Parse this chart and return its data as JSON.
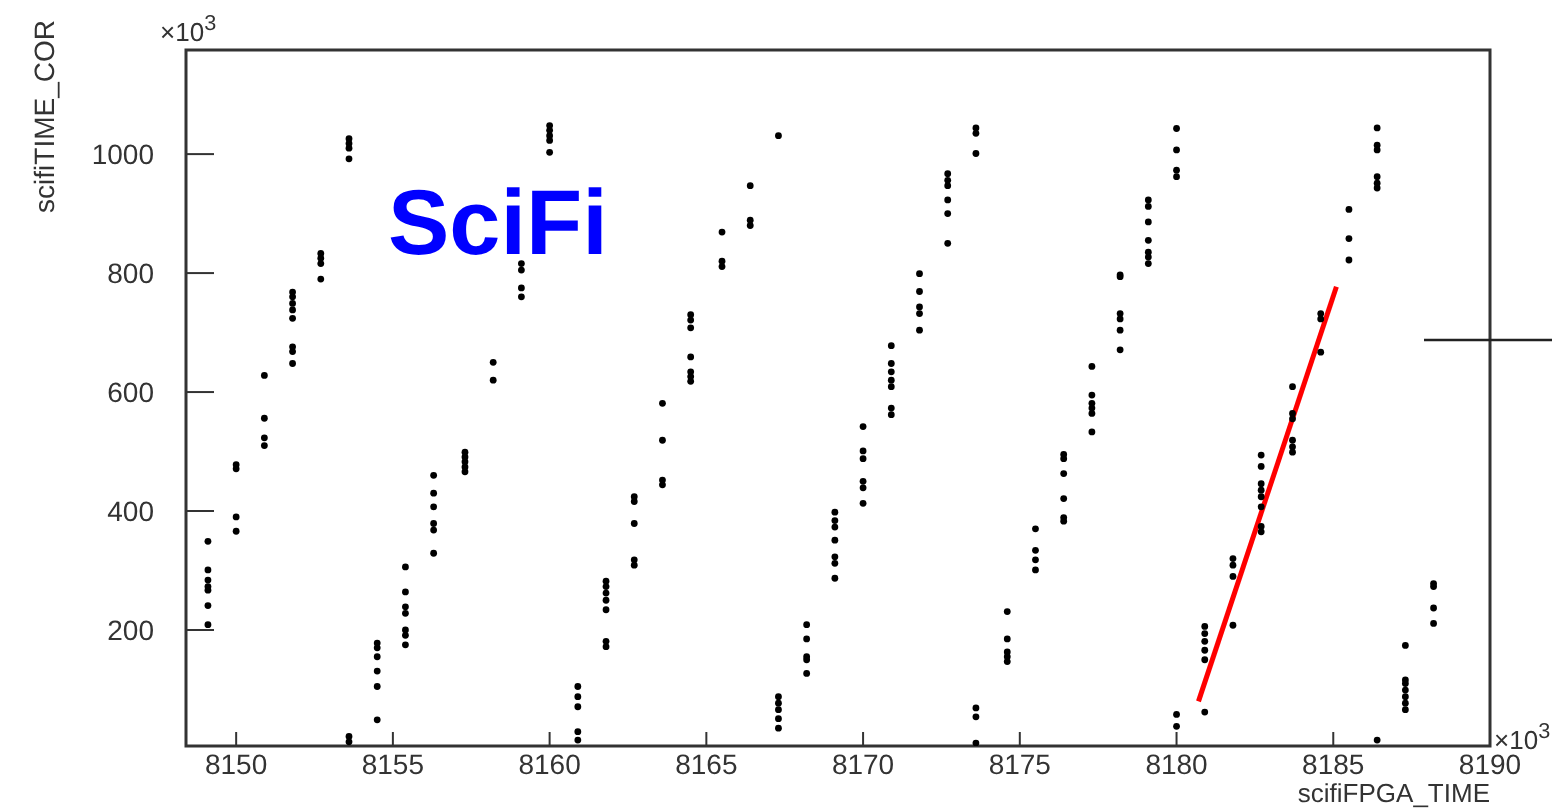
{
  "chart_data": {
    "type": "scatter",
    "title": "SciFi",
    "xlabel": "scifiFPGA_TIME",
    "ylabel": "scifiTIME_COR",
    "annotations": [
      "×10$^{3}$",
      "×10$^{3}$"
    ],
    "xlim": [
      8148.4,
      8190
    ],
    "xticks": [
      8150,
      8155,
      8160,
      8165,
      8170,
      8175,
      8180,
      8185,
      8190
    ],
    "ylim": [
      5,
      1175
    ],
    "yticks": [
      200,
      400,
      600,
      800,
      1000
    ],
    "marker": "circle",
    "series": [
      {
        "color": "#000000",
        "x": [
          8149.1,
          8149.1,
          8149.1,
          8149.1,
          8149.1,
          8149.1,
          8149.1,
          8150.0,
          8150.0,
          8150.0,
          8150.0,
          8150.9,
          8150.9,
          8150.9,
          8150.9,
          8151.8,
          8151.8,
          8151.8,
          8151.8,
          8151.8,
          8151.8,
          8151.8,
          8151.8,
          8152.7,
          8152.7,
          8152.7,
          8152.7,
          8153.6,
          8153.6,
          8153.6,
          8153.6,
          8153.6,
          8153.6,
          8154.5,
          8154.5,
          8154.5,
          8154.5,
          8154.5,
          8154.5,
          8155.4,
          8155.4,
          8155.4,
          8155.4,
          8155.4,
          8155.4,
          8155.4,
          8156.3,
          8156.3,
          8156.3,
          8156.3,
          8156.3,
          8156.3,
          8157.3,
          8157.3,
          8157.3,
          8157.3,
          8157.3,
          8158.2,
          8158.2,
          8159.1,
          8159.1,
          8159.1,
          8159.1,
          8160.0,
          8160.0,
          8160.0,
          8160.0,
          8160.0,
          8160.9,
          8160.9,
          8160.9,
          8160.9,
          8160.9,
          8161.8,
          8161.8,
          8161.8,
          8161.8,
          8161.8,
          8161.8,
          8161.8,
          8162.7,
          8162.7,
          8162.7,
          8162.7,
          8162.7,
          8163.6,
          8163.6,
          8163.6,
          8163.6,
          8164.5,
          8164.5,
          8164.5,
          8164.5,
          8164.5,
          8164.5,
          8164.5,
          8165.5,
          8165.5,
          8165.5,
          8166.4,
          8166.4,
          8166.4,
          8167.3,
          8167.3,
          8167.3,
          8167.3,
          8167.3,
          8167.3,
          8168.2,
          8168.2,
          8168.2,
          8168.2,
          8168.2,
          8169.1,
          8169.1,
          8169.1,
          8169.1,
          8169.1,
          8169.1,
          8169.1,
          8170.0,
          8170.0,
          8170.0,
          8170.0,
          8170.0,
          8170.0,
          8170.9,
          8170.9,
          8170.9,
          8170.9,
          8170.9,
          8170.9,
          8170.9,
          8171.8,
          8171.8,
          8171.8,
          8171.8,
          8171.8,
          8172.7,
          8172.7,
          8172.7,
          8172.7,
          8172.7,
          8172.7,
          8173.6,
          8173.6,
          8173.6,
          8173.6,
          8173.6,
          8173.6,
          8174.6,
          8174.6,
          8174.6,
          8174.6,
          8174.6,
          8175.5,
          8175.5,
          8175.5,
          8175.5,
          8176.4,
          8176.4,
          8176.4,
          8176.4,
          8176.4,
          8176.4,
          8177.3,
          8177.3,
          8177.3,
          8177.3,
          8177.3,
          8177.3,
          8178.2,
          8178.2,
          8178.2,
          8178.2,
          8178.2,
          8178.2,
          8179.1,
          8179.1,
          8179.1,
          8179.1,
          8179.1,
          8179.1,
          8179.1,
          8180.0,
          8180.0,
          8180.0,
          8180.0,
          8180.0,
          8180.0,
          8180.9,
          8180.9,
          8180.9,
          8180.9,
          8180.9,
          8180.9,
          8181.8,
          8181.8,
          8181.8,
          8181.8,
          8182.7,
          8182.7,
          8182.7,
          8182.7,
          8182.7,
          8182.7,
          8182.7,
          8182.7,
          8183.7,
          8183.7,
          8183.7,
          8183.7,
          8183.7,
          8183.7,
          8184.6,
          8184.6,
          8184.6,
          8185.5,
          8185.5,
          8185.5,
          8186.4,
          8186.4,
          8186.4,
          8186.4,
          8186.4,
          8186.4,
          8186.4,
          8187.3,
          8187.3,
          8187.3,
          8187.3,
          8187.3,
          8187.3,
          8187.3,
          8188.2,
          8188.2,
          8188.2,
          8188.2
        ],
        "values": [
          349,
          301,
          284,
          273,
          267,
          241,
          209,
          478,
          471,
          390,
          366,
          628,
          556,
          523,
          510,
          768,
          760,
          749,
          738,
          724,
          676,
          668,
          648,
          833,
          825,
          816,
          790,
          1026,
          1018,
          1010,
          992,
          21,
          12,
          178,
          170,
          155,
          131,
          105,
          49,
          306,
          264,
          239,
          228,
          200,
          191,
          175,
          460,
          430,
          407,
          379,
          368,
          329,
          499,
          491,
          483,
          474,
          466,
          650,
          620,
          816,
          805,
          775,
          760,
          1048,
          1040,
          1031,
          1023,
          1003,
          105,
          88,
          71,
          29,
          15,
          282,
          273,
          262,
          250,
          234,
          181,
          172,
          424,
          416,
          379,
          318,
          309,
          581,
          519,
          452,
          444,
          730,
          721,
          708,
          659,
          634,
          626,
          618,
          869,
          820,
          811,
          947,
          889,
          880,
          1031,
          88,
          77,
          66,
          51,
          35,
          209,
          185,
          155,
          150,
          127,
          398,
          384,
          373,
          351,
          323,
          312,
          287,
          542,
          501,
          488,
          450,
          439,
          413,
          678,
          648,
          634,
          620,
          609,
          573,
          562,
          799,
          769,
          743,
          732,
          704,
          967,
          956,
          947,
          923,
          900,
          850,
          1044,
          1035,
          1001,
          69,
          54,
          10,
          231,
          185,
          163,
          155,
          147,
          370,
          334,
          318,
          301,
          495,
          488,
          463,
          421,
          389,
          383,
          643,
          595,
          581,
          573,
          564,
          533,
          797,
          794,
          732,
          723,
          704,
          671,
          923,
          912,
          886,
          855,
          835,
          827,
          816,
          1043,
          1007,
          973,
          962,
          58,
          38,
          206,
          194,
          181,
          166,
          150,
          62,
          320,
          309,
          290,
          208,
          494,
          475,
          446,
          435,
          424,
          407,
          374,
          365,
          609,
          564,
          555,
          519,
          508,
          499,
          732,
          723,
          667,
          907,
          858,
          822,
          1044,
          1015,
          1007,
          962,
          951,
          943,
          15,
          174,
          116,
          110,
          99,
          88,
          77,
          66,
          278,
          273,
          237,
          211
        ]
      },
      {
        "type": "line",
        "marker": "none",
        "color": "#ff0000",
        "x": [
          8180.7,
          8185.1
        ],
        "values": [
          80,
          777
        ]
      }
    ]
  }
}
